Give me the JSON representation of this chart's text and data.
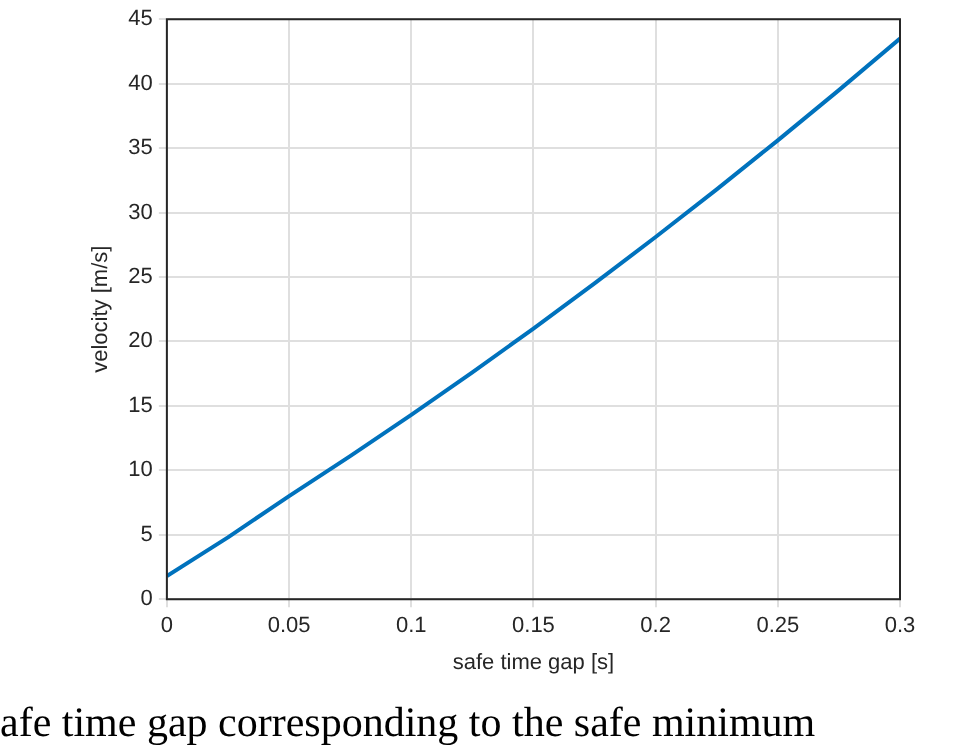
{
  "chart_data": {
    "type": "line",
    "xlabel": "safe time gap [s]",
    "ylabel": "velocity [m/s]",
    "x": [
      0,
      0.025,
      0.05,
      0.075,
      0.1,
      0.125,
      0.15,
      0.175,
      0.2,
      0.225,
      0.25,
      0.275,
      0.3
    ],
    "series": [
      {
        "color": "#0072bd",
        "values": [
          1.8,
          4.8,
          8,
          11.1,
          14.3,
          17.6,
          21,
          24.5,
          28.1,
          31.8,
          35.6,
          39.5,
          43.5
        ]
      }
    ],
    "xlim": [
      0,
      0.3
    ],
    "xticks": [
      0,
      0.05,
      0.1,
      0.15,
      0.2,
      0.25,
      0.3
    ],
    "ylim": [
      0,
      45
    ],
    "yticks": [
      0,
      5,
      10,
      15,
      20,
      25,
      30,
      35,
      40,
      45
    ],
    "grid": true,
    "marker": "none",
    "line_style": "solid",
    "annotations": [
      "afe time gap corresponding to the safe minimum"
    ]
  }
}
